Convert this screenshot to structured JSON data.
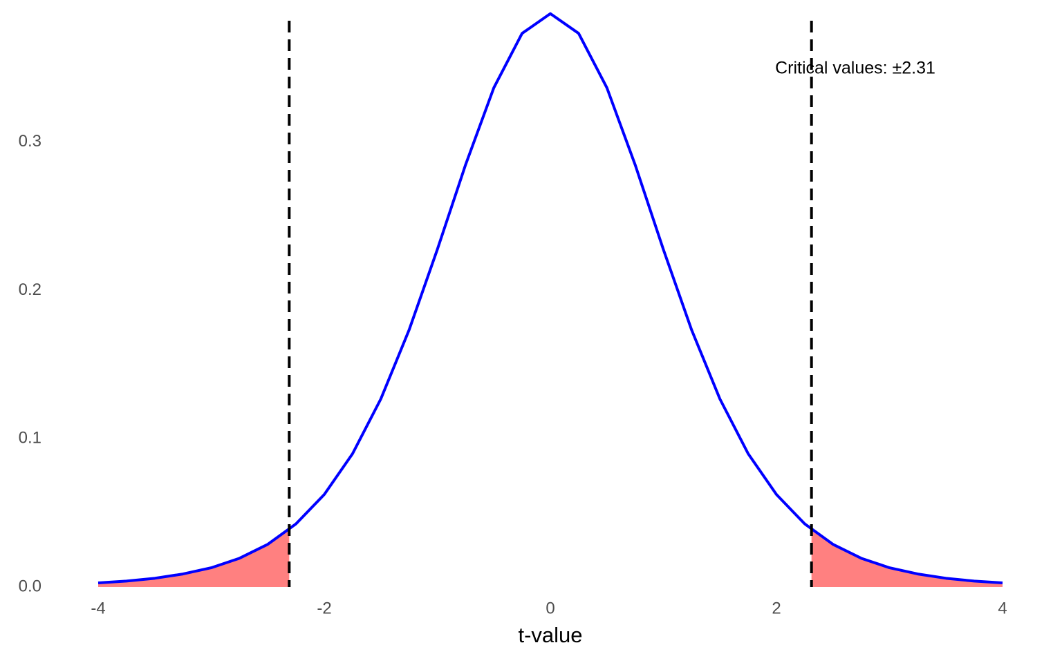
{
  "chart_data": {
    "type": "line",
    "x_label": "t-value",
    "annotation": "Critical values: ±2.31",
    "x": [
      -4,
      -3.75,
      -3.5,
      -3.25,
      -3,
      -2.75,
      -2.5,
      -2.25,
      -2,
      -1.75,
      -1.5,
      -1.25,
      -1,
      -0.75,
      -0.5,
      -0.25,
      0,
      0.25,
      0.5,
      0.75,
      1,
      1.25,
      1.5,
      1.75,
      2,
      2.25,
      2.5,
      2.75,
      3,
      3.25,
      3.5,
      3.75,
      4
    ],
    "values": [
      0.0028,
      0.004,
      0.0059,
      0.0088,
      0.013,
      0.0194,
      0.0288,
      0.0426,
      0.0624,
      0.0899,
      0.1268,
      0.1733,
      0.2276,
      0.2848,
      0.3367,
      0.3734,
      0.3867,
      0.3734,
      0.3367,
      0.2848,
      0.2276,
      0.1733,
      0.1268,
      0.0899,
      0.0624,
      0.0426,
      0.0288,
      0.0194,
      0.013,
      0.0088,
      0.0059,
      0.004,
      0.0028
    ],
    "color": "#0000ff",
    "shade": {
      "color": "#ff8080",
      "left": {
        "x": [
          -4,
          -3.75,
          -3.5,
          -3.25,
          -3,
          -2.75,
          -2.5,
          -2.31
        ],
        "values": [
          0.0028,
          0.004,
          0.0059,
          0.0088,
          0.013,
          0.0194,
          0.0288,
          0.0388
        ]
      },
      "right": {
        "x": [
          2.31,
          2.5,
          2.75,
          3,
          3.25,
          3.5,
          3.75,
          4
        ],
        "values": [
          0.0388,
          0.0288,
          0.0194,
          0.013,
          0.0088,
          0.0059,
          0.004,
          0.0028
        ]
      }
    },
    "vlines": [
      -2.31,
      2.31
    ],
    "xlim": [
      -4,
      4
    ],
    "ylim": [
      0,
      0.39
    ],
    "xticks": [
      -4,
      -2,
      0,
      2,
      4
    ],
    "yticks": [
      {
        "value": 0,
        "label": "0.0"
      },
      0.1,
      0.2,
      0.3
    ],
    "grid": false
  }
}
